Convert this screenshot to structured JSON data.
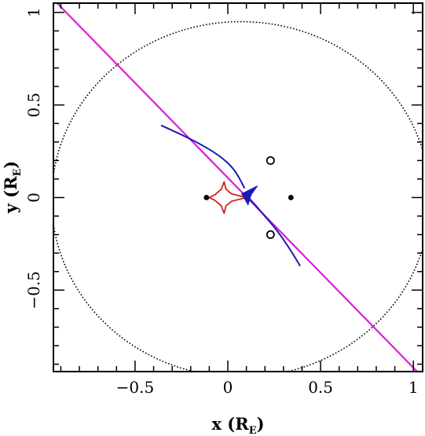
{
  "chart_data": {
    "type": "scatter",
    "xlim": [
      -0.94,
      1.05
    ],
    "ylim": [
      -0.94,
      1.05
    ],
    "x_ticks": [
      -0.5,
      0,
      0.5,
      1
    ],
    "y_ticks": [
      -0.5,
      0,
      0.5,
      1
    ],
    "x_tick_labels": [
      "−0.5",
      "0",
      "0.5",
      "1"
    ],
    "y_tick_labels": [
      "−0.5",
      "0",
      "0.5",
      "1"
    ],
    "xlabel": {
      "main": "x (R",
      "sub": "E",
      "close": ")"
    },
    "ylabel": {
      "main": "y (R",
      "sub": "E",
      "close": ")"
    },
    "grid": false,
    "colors": {
      "frame": "#000000",
      "ellipse": "#000000",
      "caustic": "#d42020",
      "trajectory": "#1a1ab8",
      "line": "#d81fd8"
    },
    "filled_points": [
      [
        -0.115,
        0.0
      ],
      [
        0.34,
        0.0
      ]
    ],
    "open_points": [
      [
        0.23,
        0.2
      ],
      [
        0.23,
        -0.2
      ]
    ],
    "ellipse": {
      "cx": 0.07,
      "cy": -0.01,
      "rx": 1.02,
      "ry": 0.96
    },
    "caustic": [
      [
        0.1,
        0.0
      ],
      [
        0.02,
        0.02
      ],
      [
        -0.01,
        0.045
      ],
      [
        -0.02,
        0.085
      ],
      [
        -0.035,
        0.045
      ],
      [
        -0.07,
        0.015
      ],
      [
        -0.1,
        0.0
      ],
      [
        -0.07,
        -0.015
      ],
      [
        -0.035,
        -0.045
      ],
      [
        -0.02,
        -0.085
      ],
      [
        -0.01,
        -0.045
      ],
      [
        0.02,
        -0.02
      ],
      [
        0.1,
        0.0
      ]
    ],
    "trajectory_upper": [
      [
        -0.36,
        0.39
      ],
      [
        -0.25,
        0.34
      ],
      [
        -0.15,
        0.29
      ],
      [
        -0.05,
        0.23
      ],
      [
        0.02,
        0.17
      ],
      [
        0.06,
        0.11
      ],
      [
        0.09,
        0.05
      ]
    ],
    "trajectory_lower": [
      [
        0.39,
        -0.37
      ],
      [
        0.33,
        -0.27
      ],
      [
        0.26,
        -0.17
      ],
      [
        0.19,
        -0.09
      ],
      [
        0.14,
        -0.03
      ],
      [
        0.1,
        0.01
      ]
    ],
    "arrow_tip": [
      0.075,
      0.02
    ],
    "line": [
      [
        -0.92,
        1.05
      ],
      [
        1.04,
        -0.96
      ]
    ]
  }
}
